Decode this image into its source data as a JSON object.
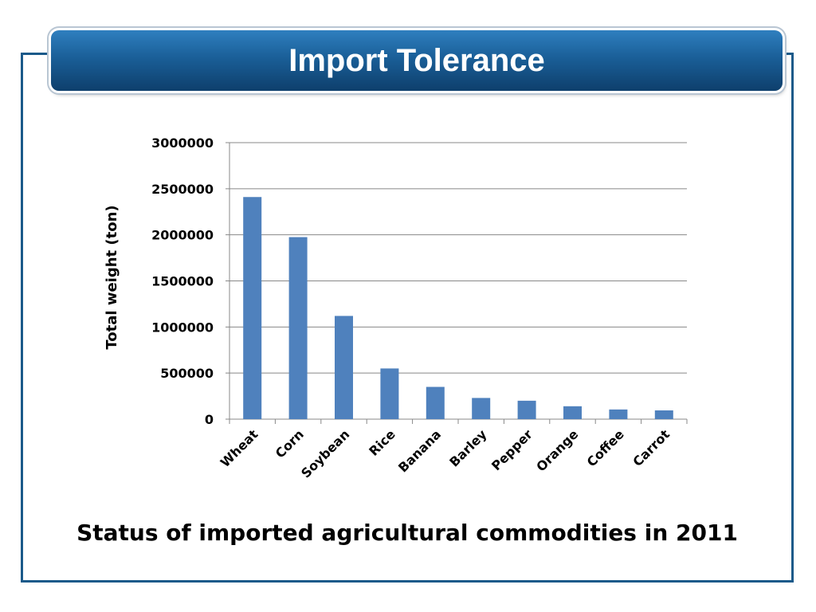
{
  "slide": {
    "title": "Import Tolerance",
    "caption": "Status of imported agricultural commodities in 2011"
  },
  "colors": {
    "frame": "#1b5a8a",
    "banner_top": "#2f7fbf",
    "banner_bottom": "#0e3f6c",
    "bar": "#4f81bd",
    "gridline": "#888888"
  },
  "chart_data": {
    "type": "bar",
    "title": "",
    "xlabel": "",
    "ylabel": "Total weight (ton)",
    "categories": [
      "Wheat",
      "Corn",
      "Soybean",
      "Rice",
      "Banana",
      "Barley",
      "Pepper",
      "Orange",
      "Coffee",
      "Carrot"
    ],
    "values": [
      2410000,
      1975000,
      1120000,
      550000,
      350000,
      230000,
      200000,
      140000,
      105000,
      95000
    ],
    "ylim": [
      0,
      3000000
    ],
    "yticks": [
      0,
      500000,
      1000000,
      1500000,
      2000000,
      2500000,
      3000000
    ],
    "grid": true,
    "legend": "none"
  }
}
